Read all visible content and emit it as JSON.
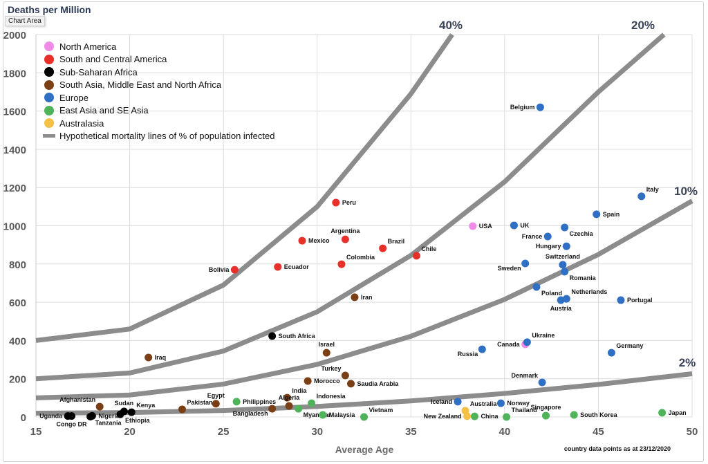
{
  "header": {
    "title": "Deaths  per Million",
    "tooltip": "Chart Area"
  },
  "footnote": "country data points as at  23/12/2020",
  "chart_data": {
    "type": "scatter",
    "title": "Deaths  per Million",
    "xlabel": "Average Age",
    "ylabel": "Deaths  per Million",
    "xlim": [
      15,
      50
    ],
    "ylim": [
      0,
      2000
    ],
    "xticks": [
      15,
      20,
      25,
      30,
      35,
      40,
      45,
      50
    ],
    "yticks": [
      0,
      200,
      400,
      600,
      800,
      1000,
      1200,
      1400,
      1600,
      1800,
      2000
    ],
    "grid": true,
    "legend_position": "top-left",
    "groups": [
      {
        "name": "North America",
        "color": "#f08ce8"
      },
      {
        "name": "South and Central America",
        "color": "#e8302a"
      },
      {
        "name": "Sub-Saharan Africa",
        "color": "#000000"
      },
      {
        "name": "South Asia, Middle East and North Africa",
        "color": "#7b3f16"
      },
      {
        "name": "Europe",
        "color": "#2f6fc4"
      },
      {
        "name": "East Asia and SE Asia",
        "color": "#4fb35a"
      },
      {
        "name": "Australasia",
        "color": "#f4c045"
      }
    ],
    "lines_legend": "Hypothetical mortality lines of  % of population infected",
    "line_color": "#8c8c8c",
    "lines": [
      {
        "name": "40%",
        "x": [
          15,
          20,
          25,
          30,
          35,
          37.2
        ],
        "y": [
          400,
          460,
          690,
          1100,
          1690,
          2000
        ]
      },
      {
        "name": "20%",
        "x": [
          15,
          20,
          25,
          30,
          35,
          40,
          45,
          48.5
        ],
        "y": [
          200,
          230,
          345,
          550,
          845,
          1230,
          1700,
          2000
        ]
      },
      {
        "name": "10%",
        "x": [
          15,
          20,
          25,
          30,
          35,
          40,
          45,
          50
        ],
        "y": [
          100,
          115,
          172,
          275,
          422,
          615,
          850,
          1130
        ]
      },
      {
        "name": "2%",
        "x": [
          15,
          20,
          25,
          30,
          35,
          40,
          45,
          50
        ],
        "y": [
          20,
          23,
          34,
          55,
          84,
          123,
          170,
          226
        ]
      }
    ],
    "points": [
      {
        "label": "USA",
        "group": 0,
        "x": 38.3,
        "y": 998,
        "lp": "r"
      },
      {
        "label": "Canada",
        "group": 0,
        "x": 41.1,
        "y": 380,
        "lp": "l"
      },
      {
        "label": "Bolivia",
        "group": 1,
        "x": 25.6,
        "y": 770,
        "lp": "l"
      },
      {
        "label": "Ecuador",
        "group": 1,
        "x": 27.9,
        "y": 785,
        "lp": "r"
      },
      {
        "label": "Mexico",
        "group": 1,
        "x": 29.2,
        "y": 922,
        "lp": "r"
      },
      {
        "label": "Peru",
        "group": 1,
        "x": 31.0,
        "y": 1121,
        "lp": "r"
      },
      {
        "label": "Argentina",
        "group": 1,
        "x": 31.5,
        "y": 929,
        "lp": "t"
      },
      {
        "label": "Colombia",
        "group": 1,
        "x": 31.3,
        "y": 799,
        "lp": "tr"
      },
      {
        "label": "Brazil",
        "group": 1,
        "x": 33.5,
        "y": 882,
        "lp": "tr"
      },
      {
        "label": "Chile",
        "group": 1,
        "x": 35.3,
        "y": 843,
        "lp": "tr"
      },
      {
        "label": "Uganda",
        "group": 2,
        "x": 16.7,
        "y": 5,
        "lp": "l"
      },
      {
        "label": "Congo DR",
        "group": 2,
        "x": 16.9,
        "y": 5,
        "lp": "b"
      },
      {
        "label": "Tanzania",
        "group": 2,
        "x": 17.9,
        "y": 2,
        "lp": "br"
      },
      {
        "label": "Nigeria",
        "group": 2,
        "x": 18.0,
        "y": 6,
        "lp": "r"
      },
      {
        "label": "Ethiopia",
        "group": 2,
        "x": 19.5,
        "y": 14,
        "lp": "br"
      },
      {
        "label": "Sudan",
        "group": 2,
        "x": 19.7,
        "y": 29,
        "lp": "t"
      },
      {
        "label": "Kenya",
        "group": 2,
        "x": 20.1,
        "y": 25,
        "lp": "tr"
      },
      {
        "label": "South Africa",
        "group": 2,
        "x": 27.6,
        "y": 423,
        "lp": "r"
      },
      {
        "label": "Afghanistan",
        "group": 3,
        "x": 18.4,
        "y": 54,
        "lp": "tl"
      },
      {
        "label": "Iraq",
        "group": 3,
        "x": 21.0,
        "y": 311,
        "lp": "r"
      },
      {
        "label": "Pakistan",
        "group": 3,
        "x": 22.8,
        "y": 40,
        "lp": "tr"
      },
      {
        "label": "Egypt",
        "group": 3,
        "x": 24.6,
        "y": 69,
        "lp": "t"
      },
      {
        "label": "Bangladesh",
        "group": 3,
        "x": 27.6,
        "y": 43,
        "lp": "bl"
      },
      {
        "label": "India",
        "group": 3,
        "x": 28.4,
        "y": 101,
        "lp": "tr"
      },
      {
        "label": "Algeria",
        "group": 3,
        "x": 28.5,
        "y": 58,
        "lp": "t"
      },
      {
        "label": "Morocco",
        "group": 3,
        "x": 29.5,
        "y": 188,
        "lp": "r"
      },
      {
        "label": "Israel",
        "group": 3,
        "x": 30.5,
        "y": 336,
        "lp": "t"
      },
      {
        "label": "Turkey",
        "group": 3,
        "x": 31.5,
        "y": 217,
        "lp": "tl"
      },
      {
        "label": "Saudia Arabia",
        "group": 3,
        "x": 31.8,
        "y": 174,
        "lp": "r"
      },
      {
        "label": "Iran",
        "group": 3,
        "x": 32.0,
        "y": 626,
        "lp": "r"
      },
      {
        "label": "Belgium",
        "group": 4,
        "x": 41.9,
        "y": 1620,
        "lp": "l"
      },
      {
        "label": "Italy",
        "group": 4,
        "x": 47.3,
        "y": 1154,
        "lp": "tr"
      },
      {
        "label": "Spain",
        "group": 4,
        "x": 44.9,
        "y": 1060,
        "lp": "r"
      },
      {
        "label": "UK",
        "group": 4,
        "x": 40.5,
        "y": 1002,
        "lp": "r"
      },
      {
        "label": "Czechia",
        "group": 4,
        "x": 43.2,
        "y": 991,
        "lp": "br"
      },
      {
        "label": "France",
        "group": 4,
        "x": 42.3,
        "y": 944,
        "lp": "l"
      },
      {
        "label": "Hungary",
        "group": 4,
        "x": 43.3,
        "y": 893,
        "lp": "l"
      },
      {
        "label": "Sweden",
        "group": 4,
        "x": 41.1,
        "y": 803,
        "lp": "bl"
      },
      {
        "label": "Switzerland",
        "group": 4,
        "x": 43.1,
        "y": 796,
        "lp": "t"
      },
      {
        "label": "Romania",
        "group": 4,
        "x": 43.2,
        "y": 760,
        "lp": "br"
      },
      {
        "label": "Poland",
        "group": 4,
        "x": 41.7,
        "y": 680,
        "lp": "br"
      },
      {
        "label": "Netherlands",
        "group": 4,
        "x": 43.3,
        "y": 618,
        "lp": "tr"
      },
      {
        "label": "Austria",
        "group": 4,
        "x": 43.0,
        "y": 611,
        "lp": "b"
      },
      {
        "label": "Portugal",
        "group": 4,
        "x": 46.2,
        "y": 611,
        "lp": "r"
      },
      {
        "label": "Ukraine",
        "group": 4,
        "x": 41.2,
        "y": 391,
        "lp": "tr"
      },
      {
        "label": "Russia",
        "group": 4,
        "x": 38.8,
        "y": 354,
        "lp": "bl"
      },
      {
        "label": "Germany",
        "group": 4,
        "x": 45.7,
        "y": 336,
        "lp": "tr"
      },
      {
        "label": "Denmark",
        "group": 4,
        "x": 42.0,
        "y": 181,
        "lp": "tl"
      },
      {
        "label": "Iceland",
        "group": 4,
        "x": 37.5,
        "y": 80,
        "lp": "l"
      },
      {
        "label": "Norway",
        "group": 4,
        "x": 39.8,
        "y": 72,
        "lp": "r"
      },
      {
        "label": "Philippines",
        "group": 5,
        "x": 25.7,
        "y": 80,
        "lp": "r"
      },
      {
        "label": "Indonesia",
        "group": 5,
        "x": 29.7,
        "y": 72,
        "lp": "tr"
      },
      {
        "label": "Myanmar",
        "group": 5,
        "x": 29.0,
        "y": 43,
        "lp": "br"
      },
      {
        "label": "Malaysia",
        "group": 5,
        "x": 30.3,
        "y": 11,
        "lp": "r"
      },
      {
        "label": "Vietnam",
        "group": 5,
        "x": 32.5,
        "y": 0,
        "lp": "tr"
      },
      {
        "label": "China",
        "group": 5,
        "x": 38.4,
        "y": 3,
        "lp": "r"
      },
      {
        "label": "Thailand",
        "group": 5,
        "x": 40.1,
        "y": 0,
        "lp": "tr"
      },
      {
        "label": "Singapore",
        "group": 5,
        "x": 42.2,
        "y": 7,
        "lp": "t"
      },
      {
        "label": "South Korea",
        "group": 5,
        "x": 43.7,
        "y": 11,
        "lp": "r"
      },
      {
        "label": "Japan",
        "group": 5,
        "x": 48.4,
        "y": 22,
        "lp": "r"
      },
      {
        "label": "Australia",
        "group": 6,
        "x": 37.9,
        "y": 33,
        "lp": "tr"
      },
      {
        "label": "New Zealand",
        "group": 6,
        "x": 38.0,
        "y": 4,
        "lp": "l"
      }
    ]
  }
}
